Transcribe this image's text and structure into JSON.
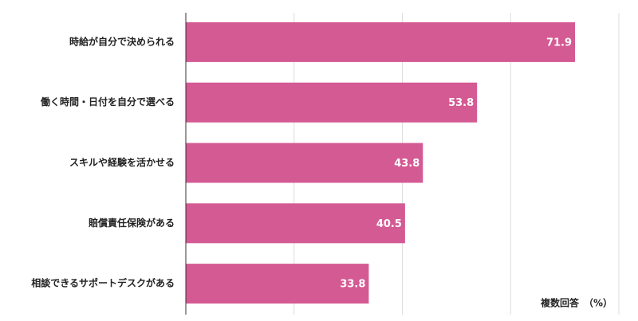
{
  "chart_data": {
    "type": "barh",
    "categories": [
      "時給が自分で決められる",
      "働く時間・日付を自分で選べる",
      "スキルや経験を活かせる",
      "賠償責任保険がある",
      "相談できるサポートデスクがある"
    ],
    "values": [
      71.9,
      53.8,
      43.8,
      40.5,
      33.8
    ],
    "color": "#d45a93",
    "xlim": [
      0,
      80
    ],
    "xticks": [
      0,
      20,
      40,
      60,
      80
    ],
    "grid": true,
    "annotation": "複数回答　（%）"
  }
}
